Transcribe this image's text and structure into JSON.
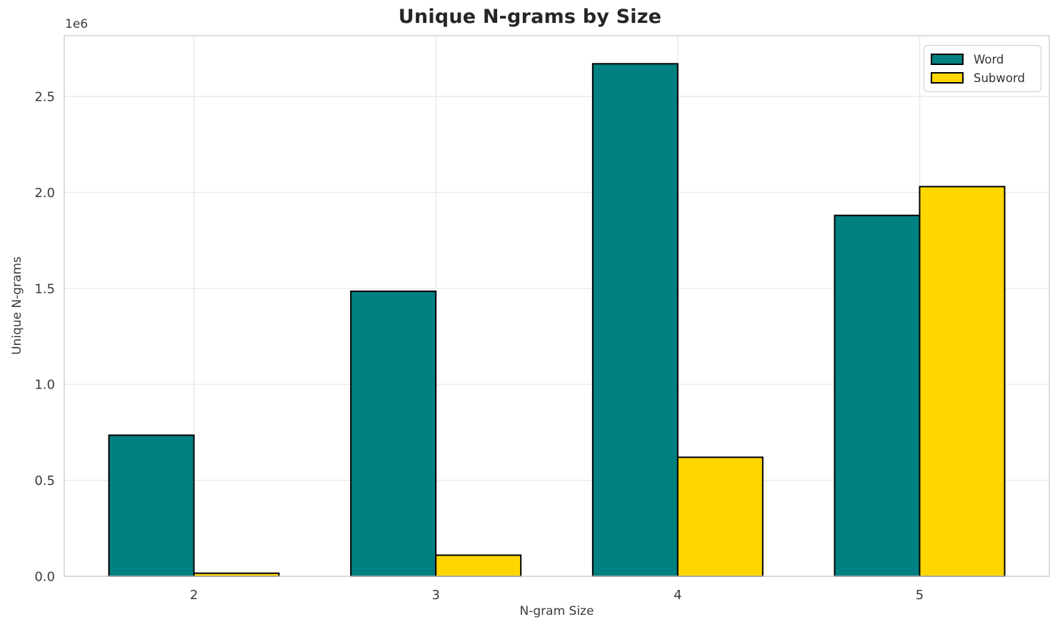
{
  "title": "Unique N-grams by Size",
  "chart_data": {
    "type": "bar",
    "title": "Unique N-grams by Size",
    "xlabel": "N-gram Size",
    "ylabel": "Unique N-grams",
    "y_offset_text": "1e6",
    "categories": [
      "2",
      "3",
      "4",
      "5"
    ],
    "series": [
      {
        "name": "Word",
        "color": "#008080",
        "values": [
          735000,
          1485000,
          2670000,
          1880000
        ]
      },
      {
        "name": "Subword",
        "color": "#FFD700",
        "values": [
          16000,
          110000,
          620000,
          2030000
        ]
      }
    ],
    "bar_edge_color": "#000000",
    "ylim": [
      0,
      2816000
    ],
    "yticks": [
      0,
      500000,
      1000000,
      1500000,
      2000000,
      2500000
    ],
    "ytick_labels": [
      "0.0",
      "0.5",
      "1.0",
      "1.5",
      "2.0",
      "2.5"
    ],
    "grid": true,
    "legend_position": "upper right"
  },
  "legend": {
    "items": [
      {
        "label": "Word"
      },
      {
        "label": "Subword"
      }
    ]
  },
  "colors": {
    "grid": "#e9e9e9",
    "spine": "#d3d3d3",
    "tick_text": "#3a3a3a",
    "title_text": "#262626"
  }
}
